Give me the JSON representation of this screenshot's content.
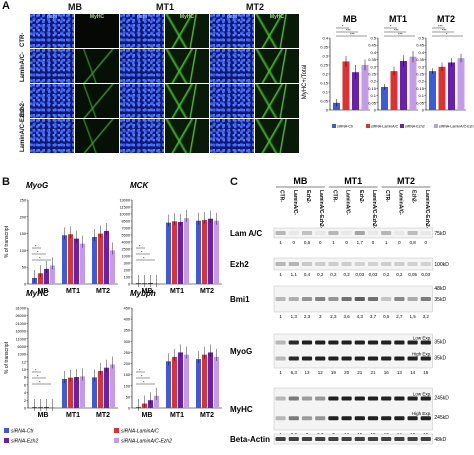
{
  "panels": {
    "A": "A",
    "B": "B",
    "C": "C"
  },
  "micro": {
    "groups": [
      "MB",
      "MT1",
      "MT2"
    ],
    "channels": [
      "dapi",
      "MyHC"
    ],
    "rows": [
      "CTR-",
      "LaminA/C-",
      "Ezh2-",
      "LaminA/C-Ezh2-"
    ]
  },
  "charts": {
    "A": {
      "ylabel": "MyHC+/Total",
      "groups": [
        "MB",
        "MT1",
        "MT2"
      ],
      "yticks": {
        "MB": [
          "0.4",
          "0.35",
          "0.3",
          "0.25",
          "0.2",
          "0.15",
          "0.1",
          "0.05",
          "0"
        ],
        "MT1": [
          "0.5",
          "0.45",
          "0.4",
          "0.35",
          "0.3",
          "0.25",
          "0.2",
          "0.15",
          "0.1",
          "0.05",
          "0"
        ],
        "MT2": [
          "0.5",
          "0.45",
          "0.4",
          "0.35",
          "0.3",
          "0.25",
          "0.2",
          "0.15",
          "0.1",
          "0.05",
          "0"
        ]
      },
      "sig": [
        "*",
        "***",
        "***",
        "*",
        "***",
        "***",
        "***",
        "***"
      ],
      "legend": [
        "siRNA-Ctr",
        "siRNA-LaminA/C",
        "siRNA-Ezh2",
        "siRNA-LaminA/C-Ezh2"
      ]
    },
    "B": {
      "ylabel": "% of transcript",
      "genes": [
        "MyoG",
        "MCK",
        "MyHC",
        "Mybph"
      ],
      "groups": [
        "MB",
        "MT1",
        "MT2"
      ],
      "yticks": {
        "MyoG": [
          "250",
          "200",
          "150",
          "100",
          "50",
          "0"
        ],
        "MCK": [
          "13000",
          "11500",
          "10000",
          "8500",
          "7000",
          "5500",
          "4000",
          "2500",
          "1000",
          "300",
          "200",
          "100",
          "0"
        ],
        "MyHC": [
          "31000",
          "26000",
          "21000",
          "16000",
          "11000",
          "6000",
          "1000",
          "12",
          "10",
          "8",
          "6",
          "4",
          "2",
          "0"
        ],
        "Mybph": [
          "450",
          "400",
          "350",
          "300",
          "250",
          "200",
          "150",
          "100",
          "50",
          "0"
        ]
      },
      "sig": [
        "*",
        "*",
        "*",
        "*",
        "*",
        "*",
        "*",
        "*",
        "*",
        "*",
        "*",
        "*",
        "*",
        "*",
        "*",
        "*",
        "*",
        "*",
        "*",
        "*",
        "*",
        "*"
      ],
      "legend": [
        "siRNA-Ctr",
        "siRNA-LaminA/C",
        "siRNA-Ezh2",
        "siRNA-LaminA/C-Ezh2"
      ]
    }
  },
  "chart_data": [
    {
      "type": "bar",
      "title": "MB",
      "ylabel": "MyHC+/Total",
      "ylim": [
        0,
        0.4
      ],
      "categories": [
        "siRNA-Ctr",
        "siRNA-LaminA/C",
        "siRNA-Ezh2",
        "siRNA-LaminA/C-Ezh2"
      ],
      "values": [
        0.04,
        0.27,
        0.21,
        0.25
      ],
      "errors": [
        0.02,
        0.03,
        0.04,
        0.03
      ]
    },
    {
      "type": "bar",
      "title": "MT1",
      "ylim": [
        0,
        0.5
      ],
      "categories": [
        "siRNA-Ctr",
        "siRNA-LaminA/C",
        "siRNA-Ezh2",
        "siRNA-LaminA/C-Ezh2"
      ],
      "values": [
        0.16,
        0.27,
        0.34,
        0.37
      ],
      "errors": [
        0.02,
        0.03,
        0.04,
        0.04
      ]
    },
    {
      "type": "bar",
      "title": "MT2",
      "ylim": [
        0,
        0.5
      ],
      "categories": [
        "siRNA-Ctr",
        "siRNA-LaminA/C",
        "siRNA-Ezh2",
        "siRNA-LaminA/C-Ezh2"
      ],
      "values": [
        0.27,
        0.3,
        0.33,
        0.36
      ],
      "errors": [
        0.02,
        0.03,
        0.03,
        0.03
      ]
    },
    {
      "type": "bar",
      "title": "MyoG",
      "ylabel": "% of transcript",
      "ylim": [
        0,
        250
      ],
      "categories": [
        "MB",
        "MT1",
        "MT2"
      ],
      "series": [
        {
          "name": "siRNA-Ctr",
          "values": [
            18,
            145,
            140
          ]
        },
        {
          "name": "siRNA-LaminA/C",
          "values": [
            32,
            148,
            150
          ]
        },
        {
          "name": "siRNA-Ezh2",
          "values": [
            45,
            135,
            158
          ]
        },
        {
          "name": "siRNA-LaminA/C-Ezh2",
          "values": [
            55,
            120,
            100
          ]
        }
      ]
    },
    {
      "type": "bar",
      "title": "MCK",
      "ylim": [
        0,
        13000
      ],
      "categories": [
        "MB",
        "MT1",
        "MT2"
      ],
      "series": [
        {
          "name": "siRNA-Ctr",
          "values": [
            20,
            9500,
            9800
          ]
        },
        {
          "name": "siRNA-LaminA/C",
          "values": [
            60,
            9700,
            9900
          ]
        },
        {
          "name": "siRNA-Ezh2",
          "values": [
            80,
            9600,
            10100
          ]
        },
        {
          "name": "siRNA-LaminA/C-Ezh2",
          "values": [
            120,
            10200,
            9800
          ]
        }
      ]
    },
    {
      "type": "bar",
      "title": "MyHC",
      "ylim": [
        0,
        31000
      ],
      "categories": [
        "MB",
        "MT1",
        "MT2"
      ],
      "series": [
        {
          "name": "siRNA-Ctr",
          "values": [
            1,
            9000,
            9500
          ]
        },
        {
          "name": "siRNA-LaminA/C",
          "values": [
            3,
            9400,
            11500
          ]
        },
        {
          "name": "siRNA-Ezh2",
          "values": [
            4,
            9600,
            12500
          ]
        },
        {
          "name": "siRNA-LaminA/C-Ezh2",
          "values": [
            2.5,
            9800,
            13500
          ]
        }
      ]
    },
    {
      "type": "bar",
      "title": "Mybph",
      "ylim": [
        0,
        450
      ],
      "categories": [
        "MB",
        "MT1",
        "MT2"
      ],
      "series": [
        {
          "name": "siRNA-Ctr",
          "values": [
            5,
            210,
            220
          ]
        },
        {
          "name": "siRNA-LaminA/C",
          "values": [
            20,
            230,
            240
          ]
        },
        {
          "name": "siRNA-Ezh2",
          "values": [
            35,
            250,
            250
          ]
        },
        {
          "name": "siRNA-LaminA/C-Ezh2",
          "values": [
            55,
            240,
            230
          ]
        }
      ]
    }
  ],
  "colors": {
    "ctr": "#3b5bdb",
    "lamin": "#e03131",
    "ezh2": "#6a1fb0",
    "both": "#c49be8"
  },
  "western": {
    "groups": [
      "MB",
      "MT1",
      "MT2"
    ],
    "lanes": [
      "CTR-",
      "LaminA/C-",
      "Ezh2-",
      "LaminA/C-Ezh2-",
      "CTR-",
      "LaminA/C-",
      "Ezh2-",
      "LaminA/C-Ezh2-",
      "CTR-",
      "LaminA/C-",
      "Ezh2-",
      "LaminA/C-Ezh2-"
    ],
    "blots": [
      {
        "name": "Lam A/C",
        "marker": "75kD",
        "quant": [
          "1",
          "0",
          "0,6",
          "0",
          "1",
          "0",
          "1,7",
          "0",
          "1",
          "0",
          "0,8",
          "0"
        ]
      },
      {
        "name": "Ezh2",
        "marker": "100kD",
        "quant": [
          "1",
          "1,1",
          "0,4",
          "0,2",
          "0,2",
          "0,2",
          "0,03",
          "0,03",
          "0,2",
          "0,2",
          "0,05",
          "0,03"
        ]
      },
      {
        "name": "Bmi1",
        "marker_top": "48kD",
        "marker": "35kD",
        "quant": [
          "1",
          "1,3",
          "2,3",
          "3",
          "2,3",
          "3,6",
          "4,3",
          "3,7",
          "0,5",
          "2,7",
          "1,5",
          "3,2"
        ]
      },
      {
        "name": "MyoG",
        "exposures": [
          "Low Exp.",
          "High Exp."
        ],
        "markers": [
          "35kD",
          "35kD"
        ],
        "quant": [
          "1",
          "6,3",
          "13",
          "12",
          "19",
          "20",
          "21",
          "21",
          "16",
          "13",
          "14",
          "15"
        ]
      },
      {
        "name": "MyHC",
        "exposures": [
          "Low Exp.",
          "High Exp."
        ],
        "markers": [
          "245kD",
          "245kD"
        ],
        "quant": [
          "1",
          "3,3",
          "2",
          "2,3",
          "7",
          "12",
          "19",
          "19",
          "13",
          "14",
          "13",
          "15"
        ]
      },
      {
        "name": "Beta-Actin",
        "marker": "48kD"
      }
    ]
  }
}
